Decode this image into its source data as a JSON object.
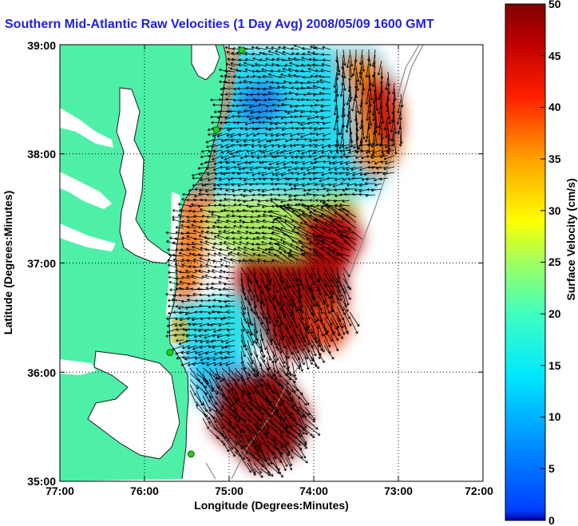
{
  "title": "Southern Mid-Atlantic Raw Velocities (1 Day Avg) 2008/05/09 1600 GMT",
  "axes": {
    "xlabel": "Longitude (Degrees:Minutes)",
    "ylabel": "Latitude (Degrees:Minutes)",
    "xticks": [
      "77:00",
      "76:00",
      "75:00",
      "74:00",
      "73:00",
      "72:00"
    ],
    "yticks": [
      "39:00",
      "38:00",
      "37:00",
      "36:00",
      "35:00"
    ],
    "xlim": [
      -77,
      -72
    ],
    "ylim": [
      35,
      39
    ]
  },
  "colorbar": {
    "label": "Surface Velocity (cm/s)",
    "ticks": [
      "0",
      "5",
      "10",
      "15",
      "20",
      "25",
      "30",
      "35",
      "40",
      "45",
      "50"
    ],
    "range": [
      0,
      50
    ],
    "colormap": "jet"
  },
  "colors": {
    "land": "#4ef0a8",
    "ocean": "#ffffff",
    "title": "#1f1fdd",
    "stations": "#22cc22"
  },
  "stations": [
    {
      "lon": -74.85,
      "lat": 38.95
    },
    {
      "lon": -75.15,
      "lat": 38.22
    },
    {
      "lon": -75.7,
      "lat": 36.18
    },
    {
      "lon": -75.45,
      "lat": 35.25
    }
  ]
}
